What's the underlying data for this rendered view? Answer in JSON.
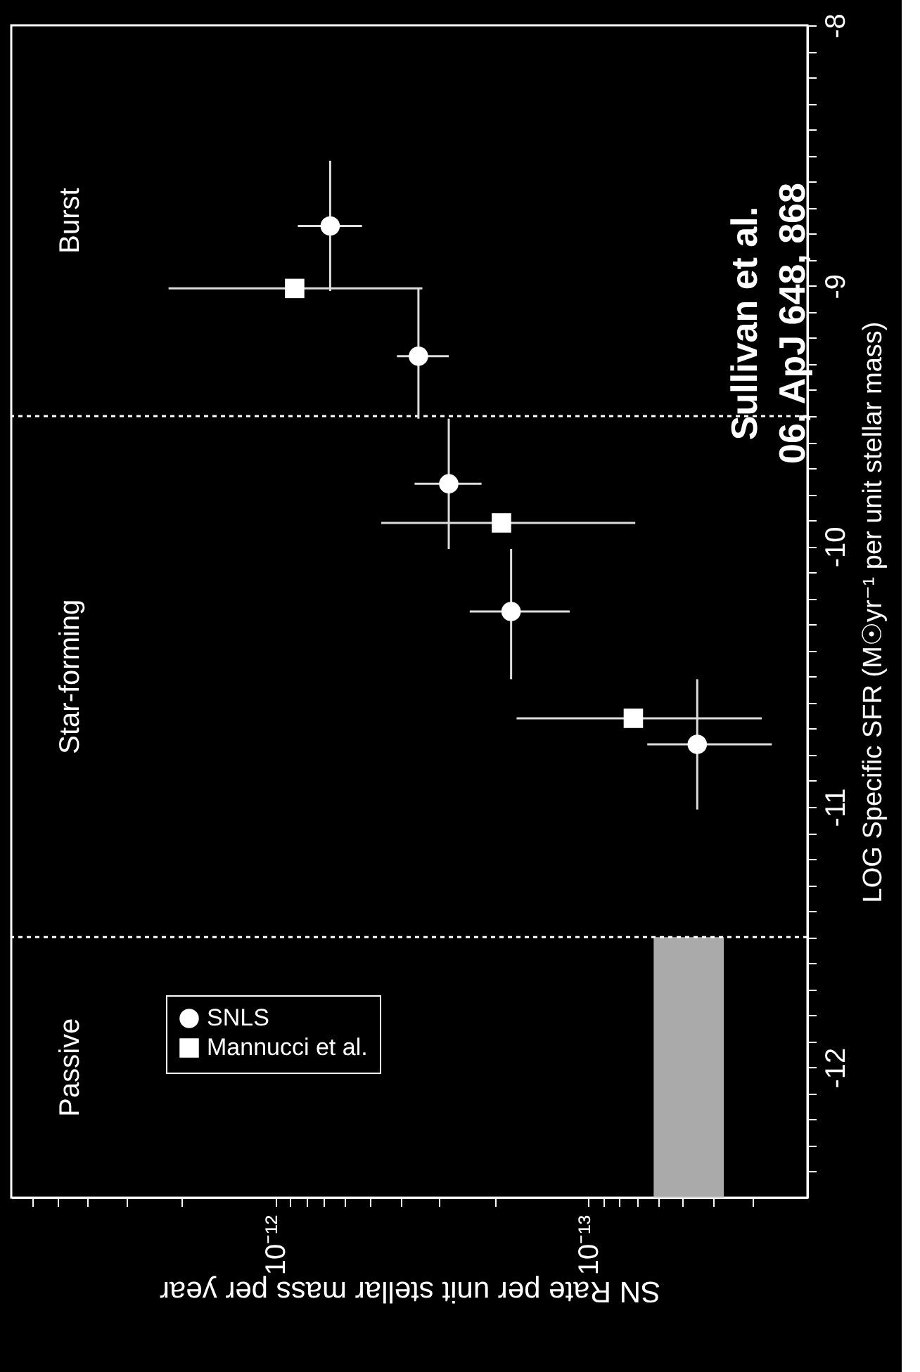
{
  "chart_data": {
    "type": "scatter",
    "xlabel": "SN Rate per unit stellar mass per year",
    "ylabel": "LOG Specific SFR (M☉yr⁻¹ per unit stellar mass)",
    "log": "x",
    "xlim": [
      7e-12,
      2e-14
    ],
    "xticks": [
      {
        "value": 1e-12,
        "label": "10⁻¹²"
      },
      {
        "value": 1e-13,
        "label": "10⁻¹³"
      },
      {
        "value": 6e-12,
        "label": null
      },
      {
        "value": 5e-12,
        "label": null
      },
      {
        "value": 4e-12,
        "label": null
      },
      {
        "value": 3e-12,
        "label": null
      },
      {
        "value": 2e-12,
        "label": null
      },
      {
        "value": 9e-13,
        "label": null
      },
      {
        "value": 8e-13,
        "label": null
      },
      {
        "value": 7e-13,
        "label": null
      },
      {
        "value": 6e-13,
        "label": null
      },
      {
        "value": 5e-13,
        "label": null
      },
      {
        "value": 4e-13,
        "label": null
      },
      {
        "value": 3e-13,
        "label": null
      },
      {
        "value": 2e-13,
        "label": null
      },
      {
        "value": 9e-14,
        "label": null
      },
      {
        "value": 8e-14,
        "label": null
      },
      {
        "value": 7e-14,
        "label": null
      },
      {
        "value": 6e-14,
        "label": null
      },
      {
        "value": 5e-14,
        "label": null
      },
      {
        "value": 4e-14,
        "label": null
      },
      {
        "value": 3e-14,
        "label": null
      }
    ],
    "ylim": [
      -12.5,
      -8
    ],
    "yticks": [
      -12,
      -11,
      -10,
      -9,
      -8,
      {
        "value": -12.4,
        "label": null
      },
      {
        "value": -12.3,
        "label": null
      },
      {
        "value": -12.2,
        "label": null
      },
      {
        "value": -12.1,
        "label": null
      },
      {
        "value": -11.9,
        "label": null
      },
      {
        "value": -11.8,
        "label": null
      },
      {
        "value": -11.7,
        "label": null
      },
      {
        "value": -11.6,
        "label": null
      },
      {
        "value": -11.5,
        "label": null
      },
      {
        "value": -11.4,
        "label": null
      },
      {
        "value": -11.3,
        "label": null
      },
      {
        "value": -11.2,
        "label": null
      },
      {
        "value": -11.1,
        "label": null
      },
      {
        "value": -10.9,
        "label": null
      },
      {
        "value": -10.8,
        "label": null
      },
      {
        "value": -10.7,
        "label": null
      },
      {
        "value": -10.6,
        "label": null
      },
      {
        "value": -10.5,
        "label": null
      },
      {
        "value": -10.4,
        "label": null
      },
      {
        "value": -10.3,
        "label": null
      },
      {
        "value": -10.2,
        "label": null
      },
      {
        "value": -10.1,
        "label": null
      },
      {
        "value": -9.9,
        "label": null
      },
      {
        "value": -9.8,
        "label": null
      },
      {
        "value": -9.7,
        "label": null
      },
      {
        "value": -9.6,
        "label": null
      },
      {
        "value": -9.5,
        "label": null
      },
      {
        "value": -9.4,
        "label": null
      },
      {
        "value": -9.3,
        "label": null
      },
      {
        "value": -9.2,
        "label": null
      },
      {
        "value": -9.1,
        "label": null
      },
      {
        "value": -8.9,
        "label": null
      },
      {
        "value": -8.8,
        "label": null
      },
      {
        "value": -8.7,
        "label": null
      },
      {
        "value": -8.6,
        "label": null
      },
      {
        "value": -8.5,
        "label": null
      },
      {
        "value": -8.4,
        "label": null
      },
      {
        "value": -8.3,
        "label": null
      },
      {
        "value": -8.2,
        "label": null
      },
      {
        "value": -8.1,
        "label": null
      }
    ],
    "series": [
      {
        "name": "SNLS",
        "color": "#ffffff",
        "marker": "circle",
        "x": [
          6.7e-13,
          3.5e-13,
          2.8e-13,
          1.77e-13,
          4.5e-14
        ],
        "values": [
          -8.77,
          -9.27,
          -9.76,
          -10.25,
          -10.76
        ],
        "xerrors": [
          [
            8.5e-13,
            5.3e-13
          ],
          [
            4.1e-13,
            2.8e-13
          ],
          [
            3.6e-13,
            2.2e-13
          ],
          [
            2.4e-13,
            1.15e-13
          ],
          [
            6.5e-14,
            2.6e-14
          ]
        ],
        "errors": [
          [
            -9.02,
            -8.52
          ],
          [
            -9.51,
            -9.01
          ],
          [
            -10.01,
            -9.51
          ],
          [
            -10.51,
            -10.01
          ],
          [
            -11.01,
            -10.51
          ]
        ]
      },
      {
        "name": "Mannucci et al.",
        "color": "#ffffff",
        "marker": "square",
        "x": [
          8.7e-13,
          1.9e-13,
          7.2e-14
        ],
        "values": [
          -9.01,
          -9.91,
          -10.66
        ],
        "xerrors": [
          [
            2.2e-12,
            3.4e-13
          ],
          [
            4.6e-13,
            7.1e-14
          ],
          [
            1.7e-13,
            2.8e-14
          ]
        ]
      }
    ],
    "ref_lines": [
      {
        "axis": "y",
        "value": -11.5,
        "color": "#ffffff",
        "line_style": "dotted"
      },
      {
        "axis": "y",
        "value": -9.5,
        "color": "#ffffff",
        "line_style": "dotted"
      }
    ],
    "bands": [
      {
        "axis": "x",
        "from": 6.2e-14,
        "to": 3.7e-14,
        "color": "#c8c8c8"
      }
    ],
    "annotations": [
      "Passive",
      "Star-forming",
      "Burst",
      "Sullivan et al.\n06, ApJ 648, 868"
    ],
    "legend": "bottom left"
  }
}
